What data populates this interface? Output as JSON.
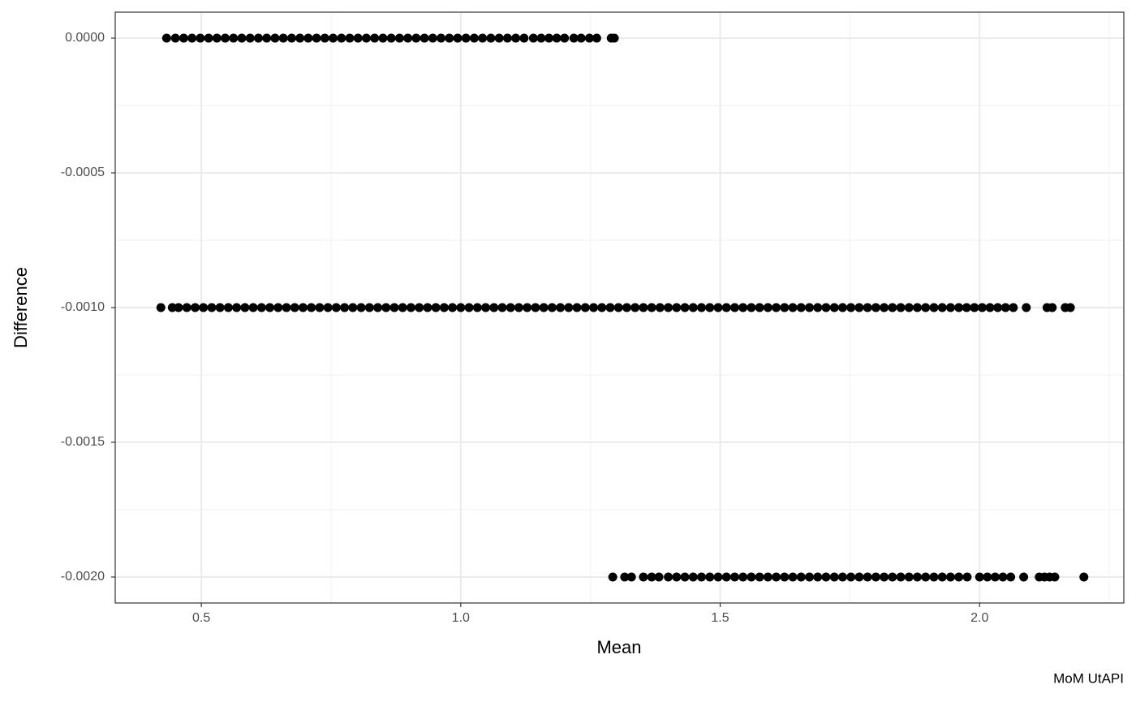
{
  "chart_data": {
    "type": "scatter",
    "x_label": "Mean",
    "y_label": "Difference",
    "caption": "MoM UtAPI",
    "xlim": [
      0.334,
      2.278
    ],
    "ylim": [
      -0.0020964,
      9.64e-05
    ],
    "xticks": [
      0.5,
      {
        "value": 1,
        "label": "1.0"
      },
      1.5,
      {
        "value": 2,
        "label": "2.0"
      }
    ],
    "yticks": [
      {
        "value": -0.002,
        "label": "-0.0020"
      },
      {
        "value": -0.0015,
        "label": "-0.0015"
      },
      {
        "value": -0.001,
        "label": "-0.0010"
      },
      {
        "value": -0.0005,
        "label": "-0.0005"
      },
      {
        "value": 0,
        "label": "0.0000"
      }
    ],
    "grid": true,
    "minor_grid": true,
    "series": [
      {
        "color": "#000000",
        "x": [
          0.433,
          0.45,
          0.466,
          0.482,
          0.498,
          0.514,
          0.53,
          0.546,
          0.562,
          0.578,
          0.594,
          0.61,
          0.626,
          0.642,
          0.658,
          0.674,
          0.69,
          0.706,
          0.722,
          0.738,
          0.754,
          0.77,
          0.786,
          0.802,
          0.818,
          0.834,
          0.85,
          0.866,
          0.882,
          0.898,
          0.914,
          0.93,
          0.946,
          0.962,
          0.978,
          0.994,
          1.01,
          1.026,
          1.042,
          1.058,
          1.074,
          1.09,
          1.106,
          1.122,
          1.14,
          1.155,
          1.17,
          1.185,
          1.2,
          1.218,
          1.232,
          1.248,
          1.262,
          1.29,
          1.296
        ],
        "values": [
          0,
          0,
          0,
          0,
          0,
          0,
          0,
          0,
          0,
          0,
          0,
          0,
          0,
          0,
          0,
          0,
          0,
          0,
          0,
          0,
          0,
          0,
          0,
          0,
          0,
          0,
          0,
          0,
          0,
          0,
          0,
          0,
          0,
          0,
          0,
          0,
          0,
          0,
          0,
          0,
          0,
          0,
          0,
          0,
          0,
          0,
          0,
          0,
          0,
          0,
          0,
          0,
          0,
          0,
          0
        ]
      },
      {
        "color": "#000000",
        "x": [
          0.422,
          0.444,
          0.456,
          0.472,
          0.488,
          0.504,
          0.52,
          0.536,
          0.552,
          0.568,
          0.584,
          0.6,
          0.616,
          0.632,
          0.648,
          0.664,
          0.68,
          0.696,
          0.712,
          0.728,
          0.744,
          0.76,
          0.776,
          0.792,
          0.808,
          0.824,
          0.84,
          0.856,
          0.872,
          0.888,
          0.904,
          0.92,
          0.936,
          0.952,
          0.968,
          0.984,
          1.0,
          1.016,
          1.032,
          1.048,
          1.064,
          1.08,
          1.096,
          1.112,
          1.128,
          1.144,
          1.16,
          1.176,
          1.192,
          1.208,
          1.224,
          1.24,
          1.256,
          1.272,
          1.288,
          1.304,
          1.32,
          1.336,
          1.352,
          1.368,
          1.384,
          1.4,
          1.416,
          1.432,
          1.448,
          1.464,
          1.48,
          1.496,
          1.512,
          1.528,
          1.544,
          1.56,
          1.576,
          1.592,
          1.608,
          1.624,
          1.64,
          1.656,
          1.672,
          1.688,
          1.704,
          1.72,
          1.736,
          1.752,
          1.768,
          1.784,
          1.8,
          1.816,
          1.832,
          1.848,
          1.864,
          1.88,
          1.896,
          1.912,
          1.928,
          1.944,
          1.96,
          1.975,
          1.99,
          2.005,
          2.02,
          2.035,
          2.05,
          2.065,
          2.09,
          2.13,
          2.14,
          2.165,
          2.175
        ],
        "values": [
          -0.001,
          -0.001,
          -0.001,
          -0.001,
          -0.001,
          -0.001,
          -0.001,
          -0.001,
          -0.001,
          -0.001,
          -0.001,
          -0.001,
          -0.001,
          -0.001,
          -0.001,
          -0.001,
          -0.001,
          -0.001,
          -0.001,
          -0.001,
          -0.001,
          -0.001,
          -0.001,
          -0.001,
          -0.001,
          -0.001,
          -0.001,
          -0.001,
          -0.001,
          -0.001,
          -0.001,
          -0.001,
          -0.001,
          -0.001,
          -0.001,
          -0.001,
          -0.001,
          -0.001,
          -0.001,
          -0.001,
          -0.001,
          -0.001,
          -0.001,
          -0.001,
          -0.001,
          -0.001,
          -0.001,
          -0.001,
          -0.001,
          -0.001,
          -0.001,
          -0.001,
          -0.001,
          -0.001,
          -0.001,
          -0.001,
          -0.001,
          -0.001,
          -0.001,
          -0.001,
          -0.001,
          -0.001,
          -0.001,
          -0.001,
          -0.001,
          -0.001,
          -0.001,
          -0.001,
          -0.001,
          -0.001,
          -0.001,
          -0.001,
          -0.001,
          -0.001,
          -0.001,
          -0.001,
          -0.001,
          -0.001,
          -0.001,
          -0.001,
          -0.001,
          -0.001,
          -0.001,
          -0.001,
          -0.001,
          -0.001,
          -0.001,
          -0.001,
          -0.001,
          -0.001,
          -0.001,
          -0.001,
          -0.001,
          -0.001,
          -0.001,
          -0.001,
          -0.001,
          -0.001,
          -0.001,
          -0.001,
          -0.001,
          -0.001,
          -0.001,
          -0.001,
          -0.001,
          -0.001,
          -0.001,
          -0.001,
          -0.001
        ]
      },
      {
        "color": "#000000",
        "x": [
          1.293,
          1.316,
          1.329,
          1.352,
          1.368,
          1.382,
          1.4,
          1.416,
          1.432,
          1.448,
          1.464,
          1.48,
          1.496,
          1.512,
          1.528,
          1.544,
          1.56,
          1.576,
          1.592,
          1.608,
          1.624,
          1.64,
          1.656,
          1.672,
          1.688,
          1.704,
          1.72,
          1.736,
          1.752,
          1.768,
          1.784,
          1.8,
          1.816,
          1.832,
          1.848,
          1.864,
          1.88,
          1.896,
          1.912,
          1.928,
          1.944,
          1.96,
          1.976,
          2.0,
          2.015,
          2.03,
          2.045,
          2.06,
          2.085,
          2.115,
          2.125,
          2.135,
          2.145,
          2.201
        ],
        "values": [
          -0.002,
          -0.002,
          -0.002,
          -0.002,
          -0.002,
          -0.002,
          -0.002,
          -0.002,
          -0.002,
          -0.002,
          -0.002,
          -0.002,
          -0.002,
          -0.002,
          -0.002,
          -0.002,
          -0.002,
          -0.002,
          -0.002,
          -0.002,
          -0.002,
          -0.002,
          -0.002,
          -0.002,
          -0.002,
          -0.002,
          -0.002,
          -0.002,
          -0.002,
          -0.002,
          -0.002,
          -0.002,
          -0.002,
          -0.002,
          -0.002,
          -0.002,
          -0.002,
          -0.002,
          -0.002,
          -0.002,
          -0.002,
          -0.002,
          -0.002,
          -0.002,
          -0.002,
          -0.002,
          -0.002,
          -0.002,
          -0.002,
          -0.002,
          -0.002,
          -0.002,
          -0.002,
          -0.002
        ]
      }
    ]
  }
}
